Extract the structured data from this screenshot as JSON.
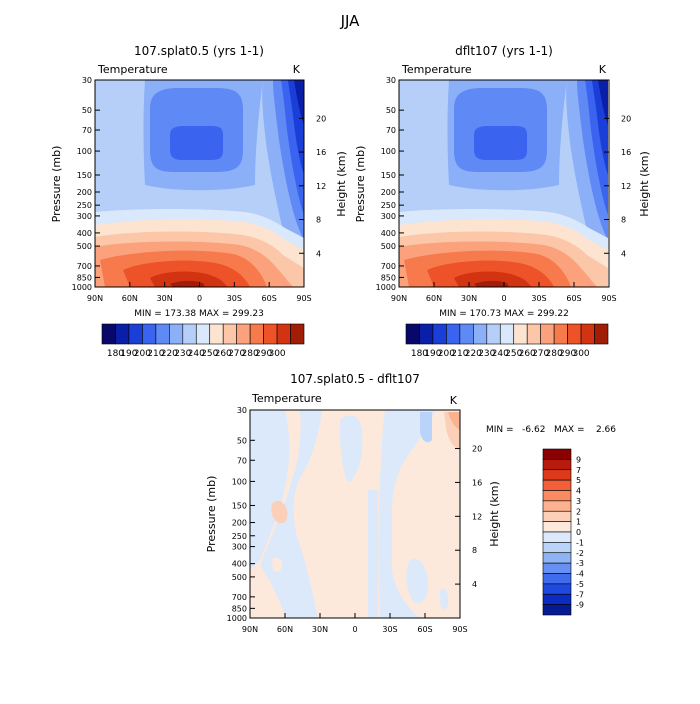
{
  "figure": {
    "title": "JJA",
    "stats_text_diff": "MIN =   -6.62   MAX =    2.66"
  },
  "chart_data": [
    {
      "type": "heatmap",
      "title": "107.splat0.5 (yrs 1-1)",
      "subtitle": "Temperature",
      "units": "K",
      "xlabel": "",
      "ylabel": "Pressure (mb)",
      "y2label": "Height (km)",
      "x_ticks": [
        "90N",
        "60N",
        "30N",
        "0",
        "30S",
        "60S",
        "90S"
      ],
      "x_tick_values": [
        90,
        60,
        30,
        0,
        -30,
        -60,
        -90
      ],
      "y_ticks": [
        "30",
        "50",
        "70",
        "100",
        "150",
        "200",
        "250",
        "300",
        "400",
        "500",
        "700",
        "850",
        "1000"
      ],
      "y_tick_values": [
        30,
        50,
        70,
        100,
        150,
        200,
        250,
        300,
        400,
        500,
        700,
        850,
        1000
      ],
      "y2_ticks": [
        "20",
        "16",
        "12",
        "8",
        "4"
      ],
      "y2_tick_values": [
        20,
        16,
        12,
        8,
        4
      ],
      "y_scale": "log",
      "ylim": [
        1000,
        30
      ],
      "xlim": [
        90,
        -90
      ],
      "min": 173.38,
      "max": 299.23,
      "stats_text": "MIN =  173.38   MAX =  299.23",
      "colorbar": {
        "orientation": "horizontal",
        "labels": [
          "180",
          "190",
          "200",
          "210",
          "220",
          "230",
          "240",
          "250",
          "260",
          "270",
          "280",
          "290",
          "300"
        ],
        "colors": [
          "#08086b",
          "#0a1fa8",
          "#1a3fd9",
          "#3a63f0",
          "#5f89f5",
          "#8cb0f7",
          "#b5cff9",
          "#d9e8fb",
          "#fde4d0",
          "#fcc6a8",
          "#fba27c",
          "#f77a4c",
          "#ee5228",
          "#d23412",
          "#a11d08"
        ]
      },
      "levels_K": [
        180,
        190,
        200,
        210,
        220,
        230,
        240,
        250,
        260,
        270,
        280,
        290,
        300
      ]
    },
    {
      "type": "heatmap",
      "title": "dflt107 (yrs 1-1)",
      "subtitle": "Temperature",
      "units": "K",
      "xlabel": "",
      "ylabel": "Pressure (mb)",
      "y2label": "Height (km)",
      "x_ticks": [
        "90N",
        "60N",
        "30N",
        "0",
        "30S",
        "60S",
        "90S"
      ],
      "y_ticks": [
        "30",
        "50",
        "70",
        "100",
        "150",
        "200",
        "250",
        "300",
        "400",
        "500",
        "700",
        "850",
        "1000"
      ],
      "y2_ticks": [
        "20",
        "16",
        "12",
        "8",
        "4"
      ],
      "y_scale": "log",
      "ylim": [
        1000,
        30
      ],
      "xlim": [
        90,
        -90
      ],
      "min": 170.73,
      "max": 299.22,
      "stats_text": "MIN =  170.73   MAX =  299.22",
      "colorbar": {
        "orientation": "horizontal",
        "labels": [
          "180",
          "190",
          "200",
          "210",
          "220",
          "230",
          "240",
          "250",
          "260",
          "270",
          "280",
          "290",
          "300"
        ],
        "colors": [
          "#08086b",
          "#0a1fa8",
          "#1a3fd9",
          "#3a63f0",
          "#5f89f5",
          "#8cb0f7",
          "#b5cff9",
          "#d9e8fb",
          "#fde4d0",
          "#fcc6a8",
          "#fba27c",
          "#f77a4c",
          "#ee5228",
          "#d23412",
          "#a11d08"
        ]
      }
    },
    {
      "type": "heatmap",
      "title": "107.splat0.5 - dflt107",
      "subtitle": "Temperature",
      "units": "K",
      "xlabel": "",
      "ylabel": "Pressure (mb)",
      "y2label": "Height (km)",
      "x_ticks": [
        "90N",
        "60N",
        "30N",
        "0",
        "30S",
        "60S",
        "90S"
      ],
      "y_ticks": [
        "30",
        "50",
        "70",
        "100",
        "150",
        "200",
        "250",
        "300",
        "400",
        "500",
        "700",
        "850",
        "1000"
      ],
      "y2_ticks": [
        "20",
        "16",
        "12",
        "8",
        "4"
      ],
      "y_scale": "log",
      "ylim": [
        1000,
        30
      ],
      "xlim": [
        90,
        -90
      ],
      "min": -6.62,
      "max": 2.66,
      "colorbar": {
        "orientation": "vertical",
        "labels": [
          "9",
          "7",
          "5",
          "4",
          "3",
          "2",
          "1",
          "0",
          "-1",
          "-2",
          "-3",
          "-4",
          "-5",
          "-7",
          "-9"
        ],
        "colors": [
          "#8b0000",
          "#b81a0c",
          "#dd3a1c",
          "#f45f3a",
          "#fa8a62",
          "#fbb28e",
          "#fcd0b8",
          "#fde9dc",
          "#dbe9fb",
          "#b9d3f9",
          "#8fb4f6",
          "#6690f2",
          "#3f6ced",
          "#1f49de",
          "#0c2bc0",
          "#061a94"
        ]
      }
    }
  ]
}
